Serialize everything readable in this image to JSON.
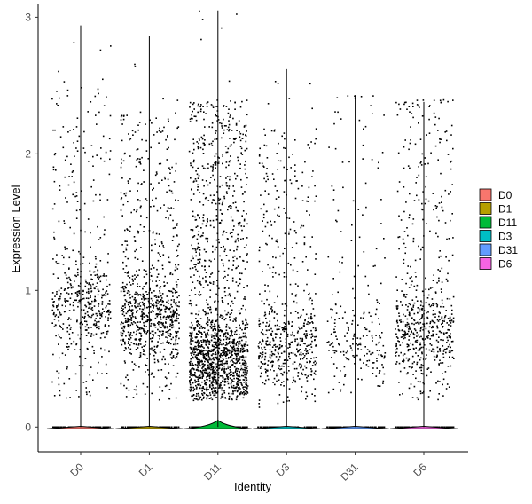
{
  "chart_data": {
    "type": "violin",
    "xlabel": "Identity",
    "ylabel": "Expression Level",
    "ylim": [
      -0.18,
      3.1
    ],
    "yticks": [
      0,
      1,
      2,
      3
    ],
    "grid": false,
    "legend_position": "right",
    "categories": [
      "D0",
      "D1",
      "D11",
      "D3",
      "D31",
      "D6"
    ],
    "colors": {
      "D0": "#F8766D",
      "D1": "#B79F00",
      "D11": "#00BA38",
      "D3": "#00BFC4",
      "D31": "#619CFF",
      "D6": "#F564E3"
    },
    "groups": [
      {
        "name": "D0",
        "max": 2.94,
        "violin_peak": 0.005,
        "points_nonzero": 520,
        "range": [
          0.2,
          2.5
        ],
        "density_center": 0.9
      },
      {
        "name": "D1",
        "max": 2.86,
        "violin_peak": 0.005,
        "points_nonzero": 900,
        "range": [
          0.2,
          2.3
        ],
        "density_center": 0.8
      },
      {
        "name": "D11",
        "max": 3.05,
        "violin_peak": 0.05,
        "points_nonzero": 1700,
        "range": [
          0.2,
          2.4
        ],
        "density_center": 0.5
      },
      {
        "name": "D3",
        "max": 2.62,
        "violin_peak": 0.005,
        "points_nonzero": 600,
        "range": [
          0.15,
          2.2
        ],
        "density_center": 0.6
      },
      {
        "name": "D31",
        "max": 2.43,
        "violin_peak": 0.005,
        "points_nonzero": 230,
        "range": [
          0.25,
          2.4
        ],
        "density_center": 0.6
      },
      {
        "name": "D6",
        "max": 2.38,
        "violin_peak": 0.005,
        "points_nonzero": 620,
        "range": [
          0.2,
          2.4
        ],
        "density_center": 0.7
      }
    ]
  },
  "legend": {
    "items": [
      {
        "label": "D0",
        "color": "#F8766D"
      },
      {
        "label": "D1",
        "color": "#B79F00"
      },
      {
        "label": "D11",
        "color": "#00BA38"
      },
      {
        "label": "D3",
        "color": "#00BFC4"
      },
      {
        "label": "D31",
        "color": "#619CFF"
      },
      {
        "label": "D6",
        "color": "#F564E3"
      }
    ]
  }
}
